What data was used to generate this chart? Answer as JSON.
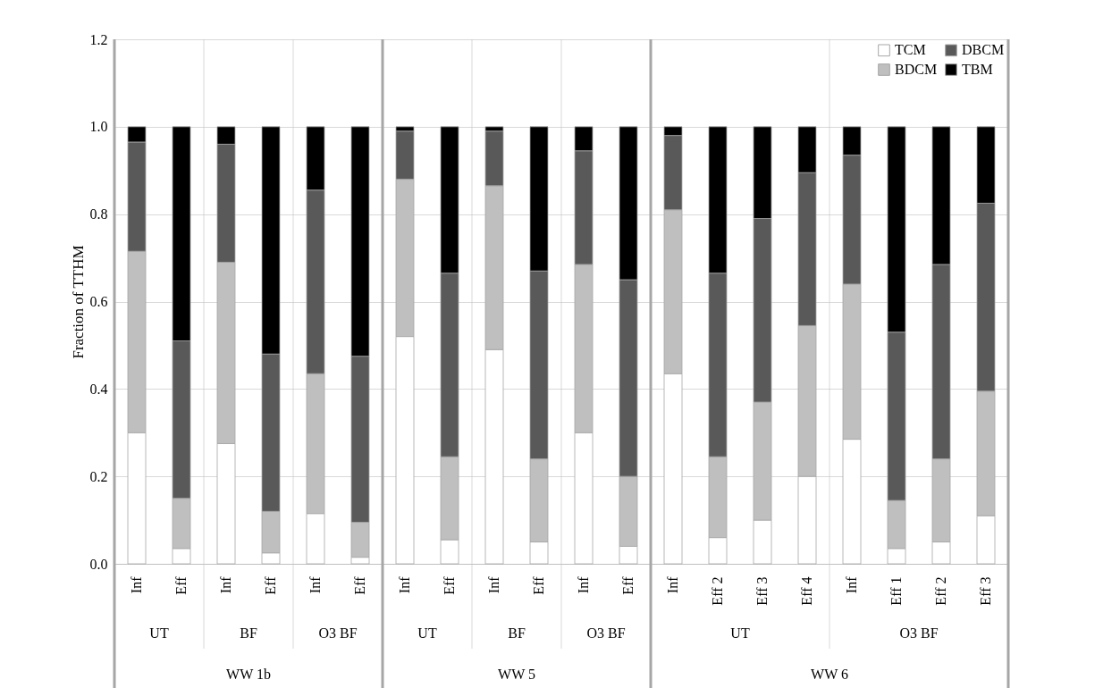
{
  "chart_data": {
    "type": "bar",
    "stacked": true,
    "ylabel": "Fraction of TTHM",
    "categories": [
      "Inf",
      "Eff",
      "Inf",
      "Eff",
      "Inf",
      "Eff",
      "Inf",
      "Eff",
      "Inf",
      "Eff",
      "Inf",
      "Eff",
      "Inf",
      "Eff 2",
      "Eff 3",
      "Eff 4",
      "Inf",
      "Eff 1",
      "Eff 2",
      "Eff 3"
    ],
    "series": [
      {
        "name": "TCM",
        "color": "#ffffff",
        "values": [
          0.3,
          0.035,
          0.275,
          0.025,
          0.115,
          0.015,
          0.52,
          0.055,
          0.49,
          0.05,
          0.3,
          0.04,
          0.435,
          0.06,
          0.1,
          0.2,
          0.285,
          0.035,
          0.05,
          0.11
        ]
      },
      {
        "name": "BDCM",
        "color": "#bfbfbf",
        "values": [
          0.415,
          0.115,
          0.415,
          0.095,
          0.32,
          0.08,
          0.36,
          0.19,
          0.375,
          0.19,
          0.385,
          0.16,
          0.375,
          0.185,
          0.27,
          0.345,
          0.355,
          0.11,
          0.19,
          0.285
        ]
      },
      {
        "name": "DBCM",
        "color": "#595959",
        "values": [
          0.25,
          0.36,
          0.27,
          0.36,
          0.42,
          0.38,
          0.11,
          0.42,
          0.125,
          0.43,
          0.26,
          0.45,
          0.17,
          0.42,
          0.42,
          0.35,
          0.295,
          0.385,
          0.445,
          0.43
        ]
      },
      {
        "name": "TBM",
        "color": "#000000",
        "values": [
          0.035,
          0.49,
          0.04,
          0.52,
          0.145,
          0.525,
          0.01,
          0.335,
          0.01,
          0.33,
          0.055,
          0.35,
          0.02,
          0.335,
          0.21,
          0.105,
          0.065,
          0.47,
          0.315,
          0.175
        ]
      }
    ],
    "ylim": [
      0,
      1.2
    ],
    "yticks": [
      {
        "value": 0,
        "label": "0.0"
      },
      {
        "value": 0.2,
        "label": "0.2"
      },
      {
        "value": 0.4,
        "label": "0.4"
      },
      {
        "value": 0.6,
        "label": "0.6"
      },
      {
        "value": 0.8,
        "label": "0.8"
      },
      {
        "value": 1,
        "label": "1.0"
      },
      {
        "value": 1.2,
        "label": "1.2"
      }
    ],
    "grid": "y",
    "legend": "top right",
    "annotations": [
      "UT",
      "BF",
      "O3 BF",
      "UT",
      "BF",
      "O3 BF",
      "UT",
      "O3 BF",
      "WW 1b",
      "WW 5",
      "WW 6"
    ]
  }
}
